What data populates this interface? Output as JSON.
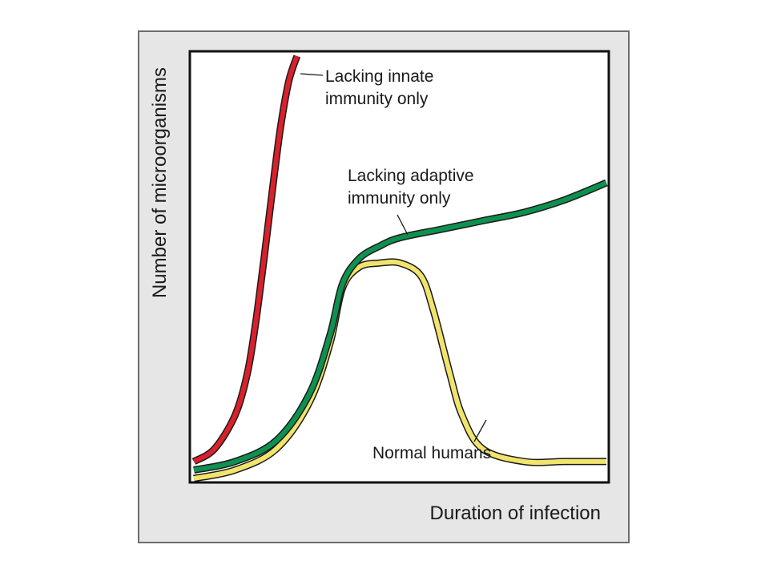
{
  "chart_data": {
    "type": "line",
    "xlabel": "Duration of infection",
    "ylabel": "Number of microorganisms",
    "xlim": [
      0,
      100
    ],
    "ylim": [
      0,
      100
    ],
    "ticks": false,
    "grid": false,
    "legend": "none",
    "series": [
      {
        "name": "Lacking innate immunity only",
        "color": "#d9202c",
        "x": [
          0,
          5,
          10,
          13,
          15,
          17,
          19,
          21,
          23,
          25
        ],
        "y": [
          4,
          7,
          15,
          25,
          37,
          52,
          68,
          83,
          94,
          100
        ]
      },
      {
        "name": "Lacking adaptive immunity only",
        "color": "#0e9150",
        "x": [
          0,
          10,
          20,
          28,
          33,
          36,
          40,
          45,
          50,
          60,
          70,
          80,
          90,
          100
        ],
        "y": [
          2,
          4,
          9,
          20,
          34,
          46,
          52,
          55,
          57,
          59,
          61,
          63,
          66,
          70
        ]
      },
      {
        "name": "Normal humans",
        "color": "#f0e46c",
        "x": [
          0,
          10,
          20,
          28,
          33,
          36,
          40,
          45,
          50,
          55,
          58,
          62,
          65,
          70,
          80,
          90,
          100
        ],
        "y": [
          0,
          2,
          7,
          18,
          32,
          45,
          50,
          51,
          51,
          48,
          40,
          25,
          15,
          7,
          4,
          4,
          4
        ]
      }
    ],
    "annotations": [
      {
        "series": 0,
        "lines": [
          "Lacking innate",
          "immunity only"
        ]
      },
      {
        "series": 1,
        "lines": [
          "Lacking adaptive",
          "immunity only"
        ]
      },
      {
        "series": 2,
        "lines": [
          "Normal humans"
        ]
      }
    ]
  }
}
